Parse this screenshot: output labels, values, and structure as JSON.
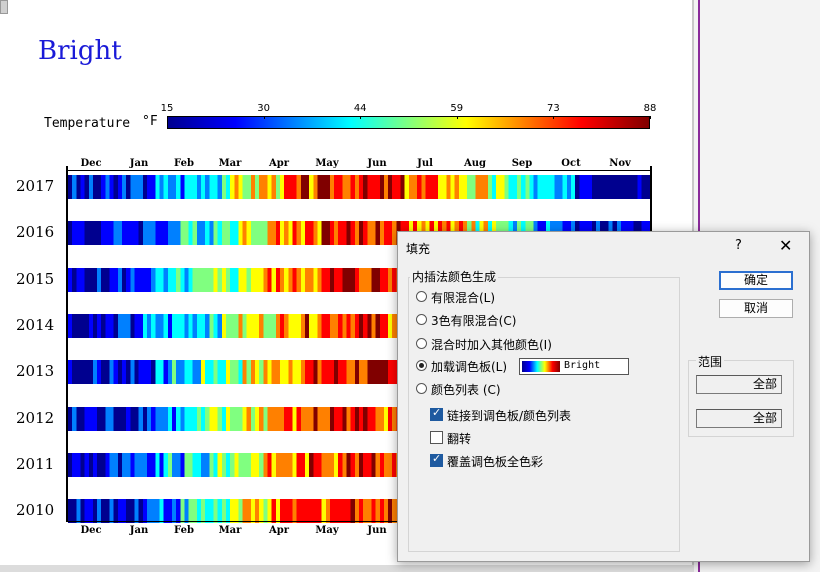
{
  "chart_data": {
    "type": "heatmap",
    "title": "Bright",
    "legend_label": "Temperature",
    "legend_unit": "°F",
    "colorbar_ticks": [
      "15",
      "30",
      "44",
      "59",
      "73",
      "88"
    ],
    "months": [
      "Dec",
      "Jan",
      "Feb",
      "Mar",
      "Apr",
      "May",
      "Jun",
      "Jul",
      "Aug",
      "Sep",
      "Oct",
      "Nov"
    ],
    "years": [
      "2017",
      "2016",
      "2015",
      "2014",
      "2013",
      "2012",
      "2011",
      "2010"
    ],
    "colormap": [
      "#00008f",
      "#0000ff",
      "#0080ff",
      "#00ffff",
      "#80ff80",
      "#ffff00",
      "#ff8000",
      "#ff0000",
      "#800000"
    ]
  },
  "dialog": {
    "title": "填充",
    "help": "?",
    "close": "✕",
    "group_label": "内插法颜色生成",
    "options": [
      {
        "label": "有限混合(L)",
        "selected": false
      },
      {
        "label": "3色有限混合(C)",
        "selected": false
      },
      {
        "label": "混合时加入其他颜色(I)",
        "selected": false
      },
      {
        "label": "加载调色板(L)",
        "selected": true
      },
      {
        "label": "颜色列表 (C)",
        "selected": false
      }
    ],
    "palette_name": "Bright",
    "checkboxes": [
      {
        "label": "链接到调色板/颜色列表",
        "checked": true
      },
      {
        "label": "翻转",
        "checked": false
      },
      {
        "label": "覆盖调色板全色彩",
        "checked": true
      }
    ],
    "ok": "确定",
    "cancel": "取消",
    "range_label": "范围",
    "range_from": "全部",
    "range_to": "全部"
  }
}
